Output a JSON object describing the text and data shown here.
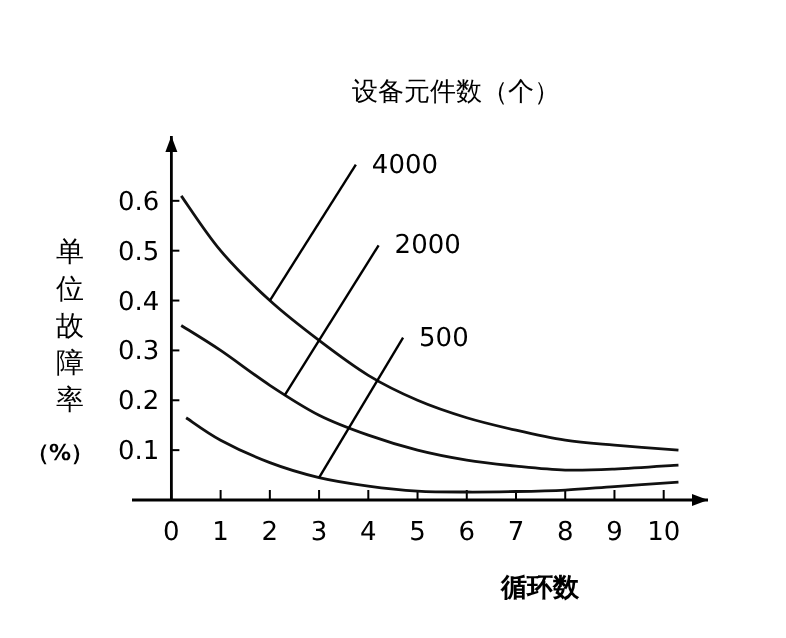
{
  "chart_data": {
    "type": "line",
    "title": "设备元件数（个）",
    "xlabel": "循环数",
    "ylabel": "单位故障率（%）",
    "xlim": [
      -0.8,
      10.9
    ],
    "ylim": [
      0,
      0.73
    ],
    "xticks": [
      0,
      1,
      2,
      3,
      4,
      5,
      6,
      7,
      8,
      9,
      10
    ],
    "yticks": [
      0.1,
      0.2,
      0.3,
      0.4,
      0.5,
      0.6
    ],
    "grid": false,
    "marker": "none",
    "line_style": "solid",
    "series": [
      {
        "color": "#111111",
        "x": [
          0.2,
          1,
          2,
          3,
          4,
          5,
          6,
          7,
          8,
          9,
          10.3
        ],
        "values": [
          0.61,
          0.5,
          0.4,
          0.32,
          0.25,
          0.2,
          0.165,
          0.14,
          0.12,
          0.11,
          0.1
        ]
      },
      {
        "color": "#111111",
        "x": [
          0.2,
          1,
          2,
          3,
          4,
          5,
          6,
          7,
          8,
          9,
          10.3
        ],
        "values": [
          0.35,
          0.3,
          0.23,
          0.17,
          0.13,
          0.1,
          0.08,
          0.068,
          0.06,
          0.062,
          0.07
        ]
      },
      {
        "color": "#111111",
        "x": [
          0.3,
          1,
          2,
          3,
          4,
          5,
          6,
          7,
          8,
          9,
          10.3
        ],
        "values": [
          0.165,
          0.12,
          0.075,
          0.045,
          0.028,
          0.018,
          0.016,
          0.017,
          0.02,
          0.027,
          0.036
        ]
      }
    ],
    "annotations": [
      {
        "text": "4000",
        "x": 2,
        "y": 0.4
      },
      {
        "text": "2000",
        "x": 2.3,
        "y": 0.21
      },
      {
        "text": "500",
        "x": 3,
        "y": 0.045
      }
    ]
  }
}
